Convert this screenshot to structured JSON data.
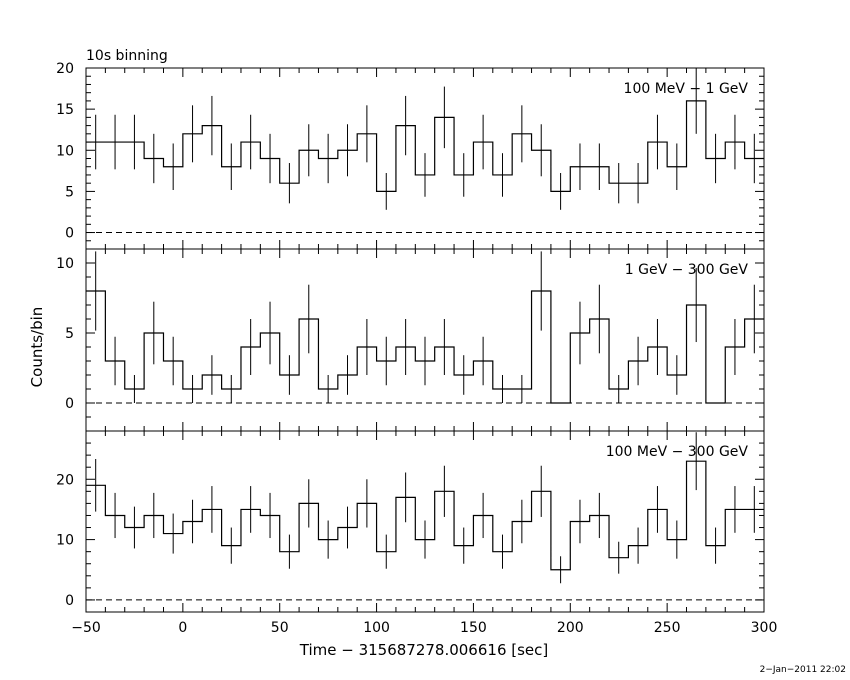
{
  "title": "10s binning",
  "ylabel": "Counts/bin",
  "xlabel": "Time − 315687278.006616 [sec]",
  "timestamp": "2−Jan−2011 22:02",
  "chart_data": {
    "type": "histogram",
    "bin_width": 10,
    "x_start": -50,
    "xlim": [
      -50,
      300
    ],
    "x_ticks": [
      -50,
      0,
      50,
      100,
      150,
      200,
      250,
      300
    ],
    "x_tick_labels": [
      "−50",
      "0",
      "50",
      "100",
      "150",
      "200",
      "250",
      "300"
    ],
    "panels": [
      {
        "label": "100 MeV − 1 GeV",
        "ylim": [
          -2,
          20
        ],
        "y_ticks": [
          0,
          5,
          10,
          15,
          20
        ],
        "y_tick_labels": [
          "0",
          "5",
          "10",
          "15",
          "20"
        ],
        "values": [
          11,
          11,
          11,
          9,
          8,
          12,
          13,
          8,
          11,
          9,
          6,
          10,
          9,
          10,
          12,
          5,
          13,
          7,
          14,
          7,
          11,
          7,
          12,
          10,
          5,
          8,
          8,
          6,
          6,
          11,
          8,
          16,
          9,
          11,
          9
        ]
      },
      {
        "label": "1 GeV − 300 GeV",
        "ylim": [
          -2,
          11
        ],
        "y_ticks": [
          0,
          5,
          10
        ],
        "y_tick_labels": [
          "0",
          "5",
          "10"
        ],
        "values": [
          8,
          3,
          1,
          5,
          3,
          1,
          2,
          1,
          4,
          5,
          2,
          6,
          1,
          2,
          4,
          3,
          4,
          3,
          4,
          2,
          3,
          1,
          1,
          8,
          0,
          5,
          6,
          1,
          3,
          4,
          2,
          7,
          0,
          4,
          6
        ]
      },
      {
        "label": "100 MeV − 300 GeV",
        "ylim": [
          -2,
          28
        ],
        "y_ticks": [
          0,
          10,
          20
        ],
        "y_tick_labels": [
          "0",
          "10",
          "20"
        ],
        "values": [
          19,
          14,
          12,
          14,
          11,
          13,
          15,
          9,
          15,
          14,
          8,
          16,
          10,
          12,
          16,
          8,
          17,
          10,
          18,
          9,
          14,
          8,
          13,
          18,
          5,
          13,
          14,
          7,
          9,
          15,
          10,
          23,
          9,
          15,
          15
        ]
      }
    ]
  }
}
